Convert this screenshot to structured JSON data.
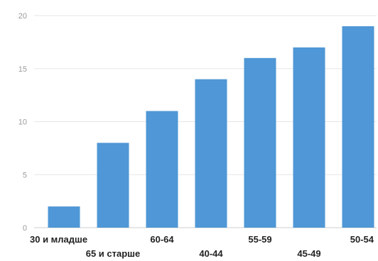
{
  "chart_data": {
    "type": "bar",
    "categories": [
      "30 и младше",
      "65 и старше",
      "60-64",
      "40-44",
      "55-59",
      "45-49",
      "50-54"
    ],
    "values": [
      2,
      8,
      11,
      14,
      16,
      17,
      19
    ],
    "ylim": [
      0,
      20
    ],
    "yticks": [
      0,
      5,
      10,
      15,
      20
    ],
    "grid": true,
    "legend": "none",
    "colors": {
      "bar": "#4f97d6",
      "grid": "#e6e6e6",
      "baseline": "#cfcfcf"
    }
  }
}
